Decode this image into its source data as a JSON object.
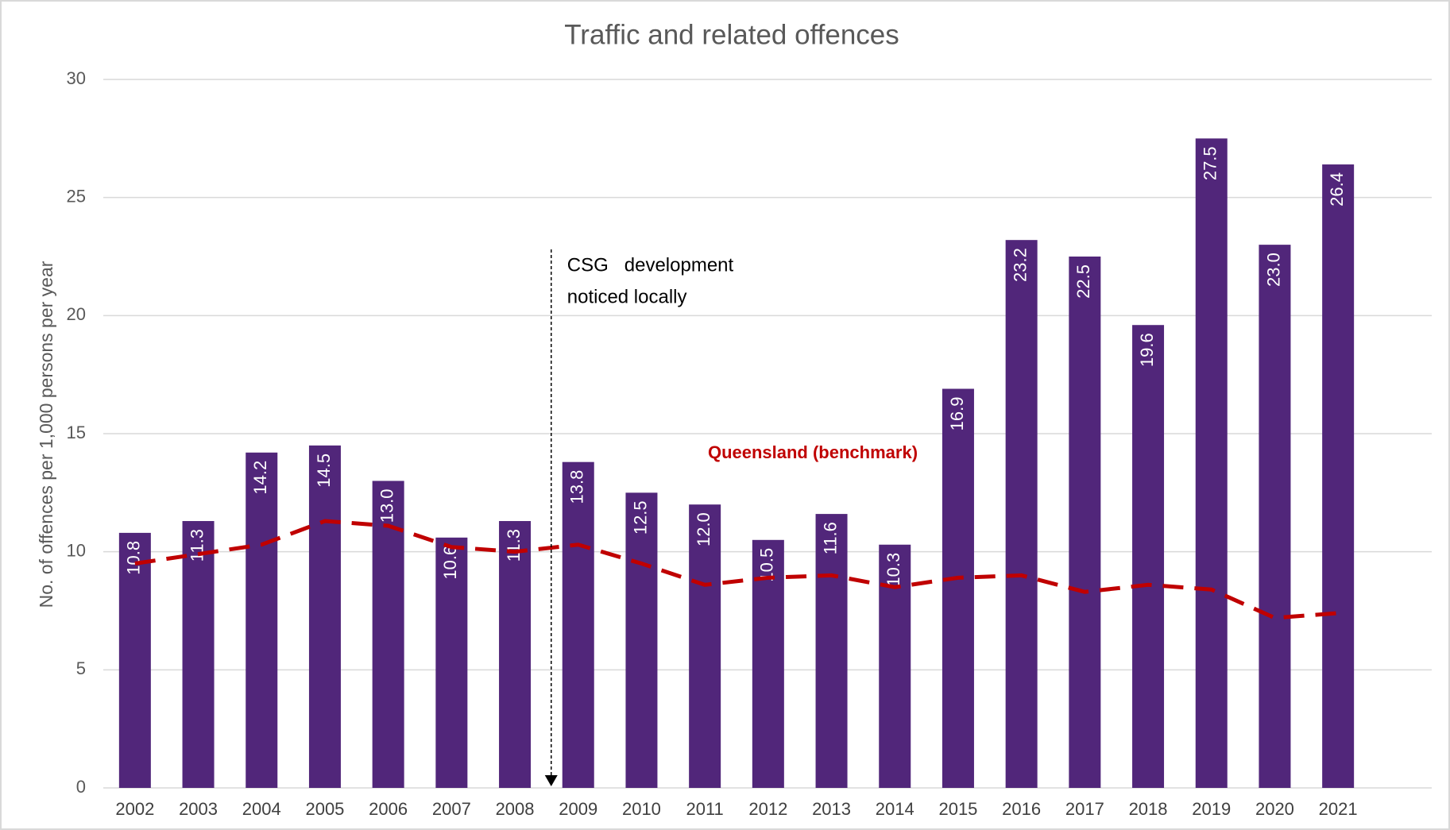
{
  "chart_data": {
    "type": "bar",
    "title": "Traffic and related offences",
    "y_label": "No. of offences per 1,000 persons per year",
    "categories": [
      "2002",
      "2003",
      "2004",
      "2005",
      "2006",
      "2007",
      "2008",
      "2009",
      "2010",
      "2011",
      "2012",
      "2013",
      "2014",
      "2015",
      "2016",
      "2017",
      "2018",
      "2019",
      "2020",
      "2021"
    ],
    "values": [
      10.8,
      11.3,
      14.2,
      14.5,
      13.0,
      10.6,
      11.3,
      13.8,
      12.5,
      12.0,
      10.5,
      11.6,
      10.3,
      16.9,
      23.2,
      22.5,
      19.6,
      27.5,
      23.0,
      26.4
    ],
    "value_labels": [
      "10.8",
      "11.3",
      "14.2",
      "14.5",
      "13.0",
      "10.6",
      "11.3",
      "13.8",
      "12.5",
      "12.0",
      "10.5",
      "11.6",
      "10.3",
      "16.9",
      "23.2",
      "22.5",
      "19.6",
      "27.5",
      "23.0",
      "26.4"
    ],
    "color": "#51267a",
    "series": [
      {
        "name": "Queensland (benchmark)",
        "type": "line",
        "color": "#c00000",
        "values": [
          9.5,
          9.9,
          10.3,
          11.3,
          11.1,
          10.2,
          10.0,
          10.3,
          9.5,
          8.6,
          8.9,
          9.0,
          8.5,
          8.9,
          9.0,
          8.3,
          8.6,
          8.4,
          7.2,
          7.4
        ]
      }
    ],
    "annotation": {
      "lines": [
        "CSG   development",
        "noticed locally"
      ],
      "category": "2009"
    },
    "ylim": [
      0,
      30
    ],
    "yticks": [
      0,
      5,
      10,
      15,
      20,
      25,
      30
    ],
    "grid": true
  }
}
